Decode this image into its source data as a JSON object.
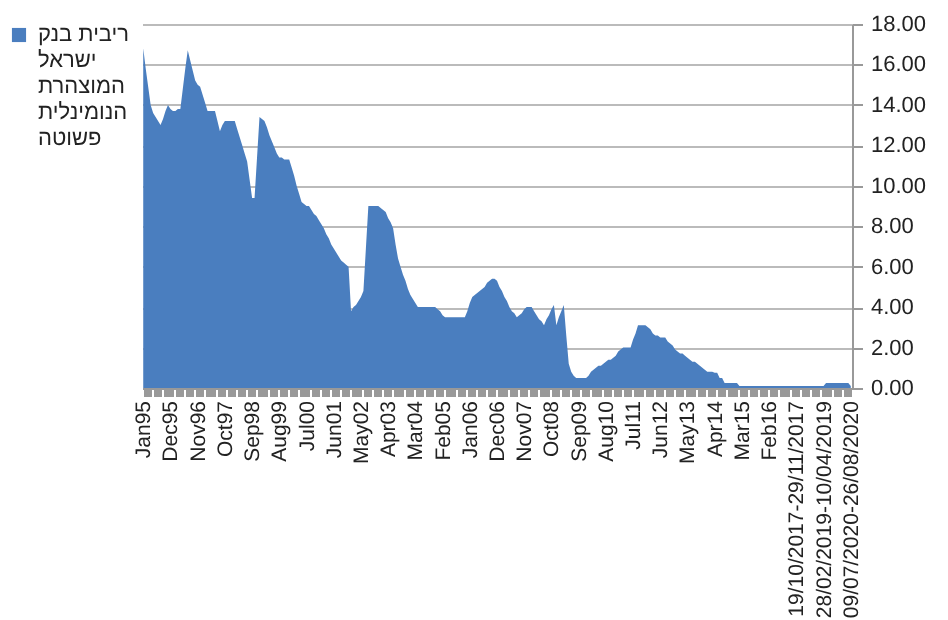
{
  "chart_data": {
    "type": "area",
    "categories": [
      "Jan95",
      null,
      null,
      null,
      null,
      null,
      null,
      null,
      null,
      null,
      null,
      "Dec95",
      null,
      null,
      null,
      null,
      null,
      null,
      null,
      null,
      null,
      null,
      "Nov96",
      null,
      null,
      null,
      null,
      null,
      null,
      null,
      null,
      null,
      null,
      "Oct97",
      null,
      null,
      null,
      null,
      null,
      null,
      null,
      null,
      null,
      null,
      "Sep98",
      null,
      null,
      null,
      null,
      null,
      null,
      null,
      null,
      null,
      null,
      "Aug99",
      null,
      null,
      null,
      null,
      null,
      null,
      null,
      null,
      null,
      null,
      "Jul00",
      null,
      null,
      null,
      null,
      null,
      null,
      null,
      null,
      null,
      null,
      "Jun01",
      null,
      null,
      null,
      null,
      null,
      null,
      null,
      null,
      null,
      null,
      "May02",
      null,
      null,
      null,
      null,
      null,
      null,
      null,
      null,
      null,
      null,
      "Apr03",
      null,
      null,
      null,
      null,
      null,
      null,
      null,
      null,
      null,
      null,
      "Mar04",
      null,
      null,
      null,
      null,
      null,
      null,
      null,
      null,
      null,
      null,
      "Feb05",
      null,
      null,
      null,
      null,
      null,
      null,
      null,
      null,
      null,
      null,
      "Jan06",
      null,
      null,
      null,
      null,
      null,
      null,
      null,
      null,
      null,
      null,
      "Dec06",
      null,
      null,
      null,
      null,
      null,
      null,
      null,
      null,
      null,
      null,
      "Nov07",
      null,
      null,
      null,
      null,
      null,
      null,
      null,
      null,
      null,
      null,
      "Oct08",
      null,
      null,
      null,
      null,
      null,
      null,
      null,
      null,
      null,
      null,
      "Sep09",
      null,
      null,
      null,
      null,
      null,
      null,
      null,
      null,
      null,
      null,
      "Aug10",
      null,
      null,
      null,
      null,
      null,
      null,
      null,
      null,
      null,
      null,
      "Jul11",
      null,
      null,
      null,
      null,
      null,
      null,
      null,
      null,
      null,
      null,
      "Jun12",
      null,
      null,
      null,
      null,
      null,
      null,
      null,
      null,
      null,
      null,
      "May13",
      null,
      null,
      null,
      null,
      null,
      null,
      null,
      null,
      null,
      null,
      "Apr14",
      null,
      null,
      null,
      null,
      null,
      null,
      null,
      null,
      null,
      null,
      "Mar15",
      null,
      null,
      null,
      null,
      null,
      null,
      null,
      null,
      null,
      null,
      "Feb16",
      null,
      null,
      null,
      null,
      null,
      null,
      null,
      null,
      null,
      null,
      "19/10/2017-29/11/2017",
      null,
      null,
      null,
      null,
      null,
      null,
      null,
      null,
      null,
      null,
      "28/02/2019-10/04/2019",
      null,
      null,
      null,
      null,
      null,
      null,
      null,
      null,
      null,
      null,
      "09/07/2020-26/08/2020"
    ],
    "series": [
      {
        "name": "ריבית בנק ישראל המוצהרת הנומינלית פשוטה",
        "color": "#4a7ebf",
        "values": [
          16.8,
          15.8,
          14.9,
          14.0,
          13.6,
          13.4,
          13.2,
          13.0,
          13.3,
          13.7,
          14.0,
          13.8,
          13.7,
          13.7,
          13.8,
          13.8,
          14.8,
          15.8,
          16.7,
          16.2,
          15.7,
          15.2,
          15.0,
          14.9,
          14.5,
          14.1,
          13.7,
          13.7,
          13.7,
          13.7,
          13.2,
          12.7,
          13.0,
          13.2,
          13.2,
          13.2,
          13.2,
          13.2,
          12.8,
          12.4,
          12.0,
          11.6,
          11.2,
          10.3,
          9.4,
          9.4,
          11.4,
          13.4,
          13.3,
          13.2,
          12.9,
          12.5,
          12.2,
          11.9,
          11.6,
          11.4,
          11.4,
          11.3,
          11.3,
          11.3,
          10.9,
          10.5,
          10.0,
          9.6,
          9.2,
          9.1,
          9.0,
          9.0,
          8.8,
          8.6,
          8.5,
          8.3,
          8.1,
          7.9,
          7.6,
          7.4,
          7.1,
          6.9,
          6.7,
          6.5,
          6.3,
          6.2,
          6.1,
          6.0,
          3.8,
          4.0,
          4.1,
          4.3,
          4.5,
          4.8,
          6.9,
          9.0,
          9.0,
          9.0,
          9.0,
          9.0,
          8.9,
          8.8,
          8.7,
          8.4,
          8.2,
          7.9,
          7.1,
          6.4,
          6.0,
          5.6,
          5.3,
          4.9,
          4.6,
          4.4,
          4.2,
          4.0,
          4.0,
          4.0,
          4.0,
          4.0,
          4.0,
          4.0,
          4.0,
          3.9,
          3.8,
          3.6,
          3.5,
          3.5,
          3.5,
          3.5,
          3.5,
          3.5,
          3.5,
          3.5,
          3.5,
          3.8,
          4.2,
          4.5,
          4.6,
          4.7,
          4.8,
          4.9,
          5.0,
          5.2,
          5.3,
          5.4,
          5.4,
          5.3,
          5.0,
          4.8,
          4.5,
          4.3,
          4.0,
          3.8,
          3.7,
          3.5,
          3.6,
          3.7,
          3.9,
          4.0,
          4.0,
          4.0,
          3.8,
          3.6,
          3.4,
          3.3,
          3.1,
          3.4,
          3.6,
          3.9,
          4.1,
          3.1,
          3.5,
          3.8,
          4.1,
          2.6,
          1.2,
          0.8,
          0.6,
          0.5,
          0.5,
          0.5,
          0.5,
          0.5,
          0.6,
          0.8,
          0.9,
          1.0,
          1.1,
          1.1,
          1.2,
          1.3,
          1.4,
          1.4,
          1.5,
          1.6,
          1.8,
          1.9,
          2.0,
          2.0,
          2.0,
          2.0,
          2.4,
          2.7,
          3.1,
          3.1,
          3.1,
          3.1,
          3.0,
          2.9,
          2.7,
          2.6,
          2.6,
          2.5,
          2.5,
          2.5,
          2.3,
          2.2,
          2.1,
          1.9,
          1.8,
          1.7,
          1.7,
          1.6,
          1.5,
          1.4,
          1.3,
          1.3,
          1.2,
          1.1,
          1.0,
          0.9,
          0.8,
          0.8,
          0.8,
          0.75,
          0.75,
          0.5,
          0.5,
          0.25,
          0.25,
          0.25,
          0.25,
          0.25,
          0.25,
          0.1,
          0.1,
          0.1,
          0.1,
          0.1,
          0.1,
          0.1,
          0.1,
          0.1,
          0.1,
          0.1,
          0.1,
          0.1,
          0.1,
          0.1,
          0.1,
          0.1,
          0.1,
          0.1,
          0.1,
          0.1,
          0.1,
          0.1,
          0.1,
          0.1,
          0.1,
          0.1,
          0.1,
          0.1,
          0.1,
          0.1,
          0.1,
          0.1,
          0.1,
          0.1,
          0.25,
          0.25,
          0.25,
          0.25,
          0.25,
          0.25,
          0.25,
          0.25,
          0.25,
          0.25,
          0.1
        ]
      }
    ],
    "ylim": [
      0,
      18
    ],
    "yticks": [
      {
        "value": 0,
        "label": "0.00"
      },
      {
        "value": 2,
        "label": "2.00"
      },
      {
        "value": 4,
        "label": "4.00"
      },
      {
        "value": 6,
        "label": "6.00"
      },
      {
        "value": 8,
        "label": "8.00"
      },
      {
        "value": 10,
        "label": "10.00"
      },
      {
        "value": 12,
        "label": "12.00"
      },
      {
        "value": 14,
        "label": "14.00"
      },
      {
        "value": 16,
        "label": "16.00"
      },
      {
        "value": 18,
        "label": "18.00"
      }
    ],
    "grid": "y",
    "legend": "left"
  }
}
